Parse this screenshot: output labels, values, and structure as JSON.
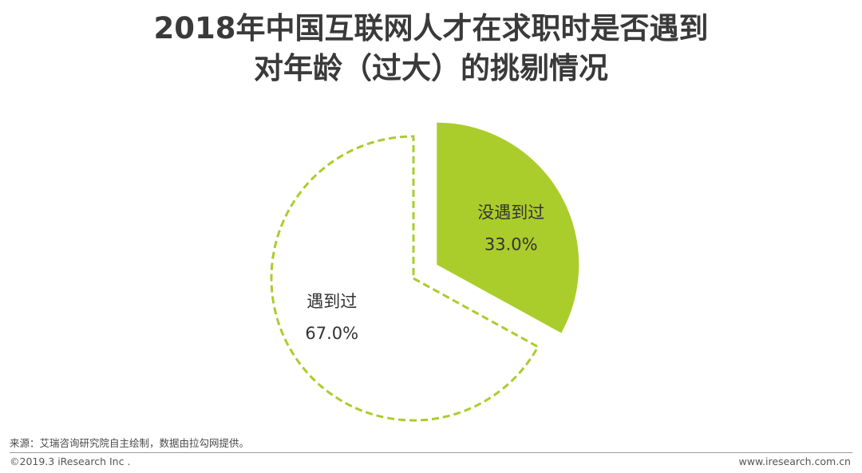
{
  "header": {
    "title_line_1": "2018年中国互联网人才在求职时是否遇到",
    "title_line_2": "对年龄（过大）的挑剔情况"
  },
  "chart_data": {
    "type": "pie",
    "title": "2018年中国互联网人才在求职时是否遇到对年龄（过大）的挑剔情况",
    "slices": [
      {
        "label": "没遇到过",
        "value": 33.0,
        "value_label": "33.0%",
        "exploded": true,
        "style": "solid",
        "color": "#aacd2b"
      },
      {
        "label": "遇到过",
        "value": 67.0,
        "value_label": "67.0%",
        "exploded": false,
        "style": "dashed-outline",
        "color": "#aacd2b"
      }
    ],
    "start_angle": "12 o'clock, clockwise",
    "legend": "none"
  },
  "footer": {
    "source": "来源：艾瑞咨询研究院自主绘制，数据由拉勾网提供。",
    "copyright": "©2019.3 iResearch Inc .",
    "website": "www.iresearch.com.cn"
  }
}
